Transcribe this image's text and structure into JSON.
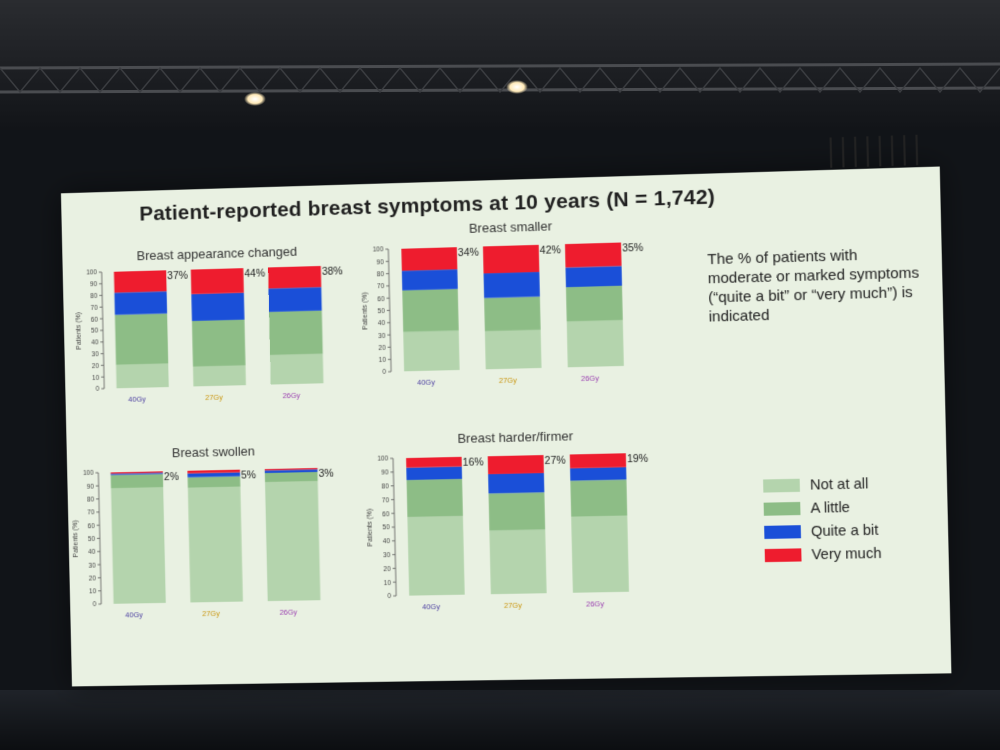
{
  "slide": {
    "title": "Patient-reported breast symptoms at 10 years (N = 1,742)",
    "note": "The % of patients with moderate or marked symptoms (“quite a bit” or “very much”) is indicated"
  },
  "colors": {
    "not_at_all": "#b4d4ad",
    "a_little": "#8dbd86",
    "quite_a_bit": "#1a4fd8",
    "very_much": "#ee1c2e",
    "tick_40": "#4a3da0",
    "tick_27": "#c9950c",
    "tick_26": "#9a3fb0"
  },
  "legend": [
    {
      "label": "Not at all",
      "color": "#b4d4ad"
    },
    {
      "label": "A little",
      "color": "#8dbd86"
    },
    {
      "label": "Quite a bit",
      "color": "#1a4fd8"
    },
    {
      "label": "Very much",
      "color": "#ee1c2e"
    }
  ],
  "chart_data": [
    {
      "type": "bar",
      "stacked": true,
      "title": "Breast  appearance changed",
      "ylabel": "Patients (%)",
      "ylim": [
        0,
        100
      ],
      "yticks": [
        "0",
        "10",
        "20",
        "30",
        "40",
        "50",
        "60",
        "70",
        "80",
        "90",
        "100"
      ],
      "categories": [
        "40Gy",
        "27Gy",
        "26Gy"
      ],
      "series": [
        {
          "name": "Not at all",
          "values": [
            20,
            17,
            25
          ]
        },
        {
          "name": "A little",
          "values": [
            43,
            39,
            37
          ]
        },
        {
          "name": "Quite a bit",
          "values": [
            19,
            23,
            20
          ]
        },
        {
          "name": "Very much",
          "values": [
            18,
            21,
            18
          ]
        }
      ],
      "labels": [
        "37%",
        "44%",
        "38%"
      ]
    },
    {
      "type": "bar",
      "stacked": true,
      "title": "Breast smaller",
      "ylabel": "Patients (%)",
      "ylim": [
        0,
        100
      ],
      "yticks": [
        "0",
        "10",
        "20",
        "30",
        "40",
        "50",
        "60",
        "70",
        "80",
        "90",
        "100"
      ],
      "categories": [
        "40Gy",
        "27Gy",
        "26Gy"
      ],
      "series": [
        {
          "name": "Not at all",
          "values": [
            32,
            31,
            37
          ]
        },
        {
          "name": "A little",
          "values": [
            34,
            27,
            28
          ]
        },
        {
          "name": "Quite a bit",
          "values": [
            16,
            20,
            16
          ]
        },
        {
          "name": "Very much",
          "values": [
            18,
            22,
            19
          ]
        }
      ],
      "labels": [
        "34%",
        "42%",
        "35%"
      ]
    },
    {
      "type": "bar",
      "stacked": true,
      "title": "Breast swollen",
      "ylabel": "Patients (%)",
      "ylim": [
        0,
        100
      ],
      "yticks": [
        "0",
        "10",
        "20",
        "30",
        "40",
        "50",
        "60",
        "70",
        "80",
        "90",
        "100"
      ],
      "categories": [
        "40Gy",
        "27Gy",
        "26Gy"
      ],
      "series": [
        {
          "name": "Not at all",
          "values": [
            88,
            87,
            90
          ]
        },
        {
          "name": "A little",
          "values": [
            10,
            8,
            7
          ]
        },
        {
          "name": "Quite a bit",
          "values": [
            1,
            3,
            2
          ]
        },
        {
          "name": "Very much",
          "values": [
            1,
            2,
            1
          ]
        }
      ],
      "labels": [
        "2%",
        "5%",
        "3%"
      ]
    },
    {
      "type": "bar",
      "stacked": true,
      "title": "Breast harder/firmer",
      "ylabel": "Patients (%)",
      "ylim": [
        0,
        100
      ],
      "yticks": [
        "0",
        "10",
        "20",
        "30",
        "40",
        "50",
        "60",
        "70",
        "80",
        "90",
        "100"
      ],
      "categories": [
        "40Gy",
        "27Gy",
        "26Gy"
      ],
      "series": [
        {
          "name": "Not at all",
          "values": [
            57,
            46,
            55
          ]
        },
        {
          "name": "A little",
          "values": [
            27,
            27,
            26
          ]
        },
        {
          "name": "Quite a bit",
          "values": [
            9,
            14,
            9
          ]
        },
        {
          "name": "Very much",
          "values": [
            7,
            13,
            10
          ]
        }
      ],
      "labels": [
        "16%",
        "27%",
        "19%"
      ]
    }
  ]
}
